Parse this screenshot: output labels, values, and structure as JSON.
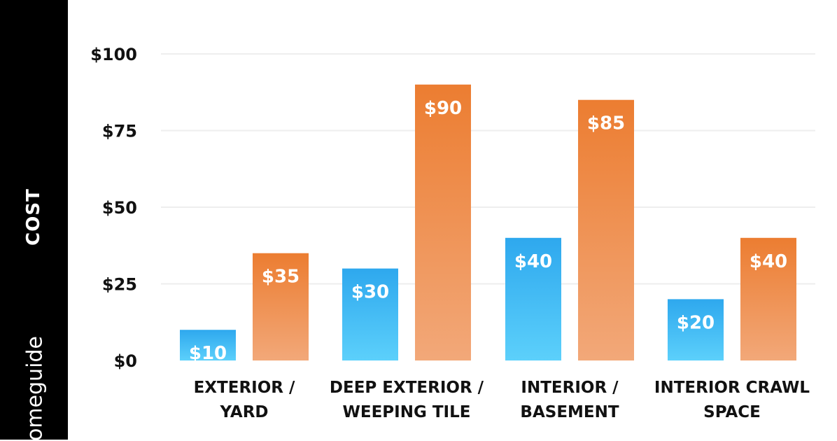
{
  "sidebar": {
    "axis_label": "COST",
    "brand": "omeguide"
  },
  "colors": {
    "band": "#000000",
    "series_low": "#3bb7ef",
    "series_high": "#ef8a3f",
    "grid": "#eeeeee"
  },
  "chart_data": {
    "type": "bar",
    "title": "",
    "xlabel": "",
    "ylabel": "COST",
    "ylim": [
      0,
      100
    ],
    "yticks": [
      "$0",
      "$25",
      "$50",
      "$75",
      "$100"
    ],
    "ytick_values": [
      0,
      25,
      50,
      75,
      100
    ],
    "grid": true,
    "categories": [
      [
        "EXTERIOR /",
        "YARD"
      ],
      [
        "DEEP EXTERIOR /",
        "WEEPING TILE"
      ],
      [
        "INTERIOR /",
        "BASEMENT"
      ],
      [
        "INTERIOR CRAWL",
        "SPACE"
      ]
    ],
    "series": [
      {
        "values": [
          10,
          30,
          40,
          20
        ],
        "labels": [
          "$10",
          "$30",
          "$40",
          "$20"
        ],
        "color": "#3bb7ef"
      },
      {
        "values": [
          35,
          90,
          85,
          40
        ],
        "labels": [
          "$35",
          "$90",
          "$85",
          "$40"
        ],
        "color": "#ef8a3f"
      }
    ]
  }
}
